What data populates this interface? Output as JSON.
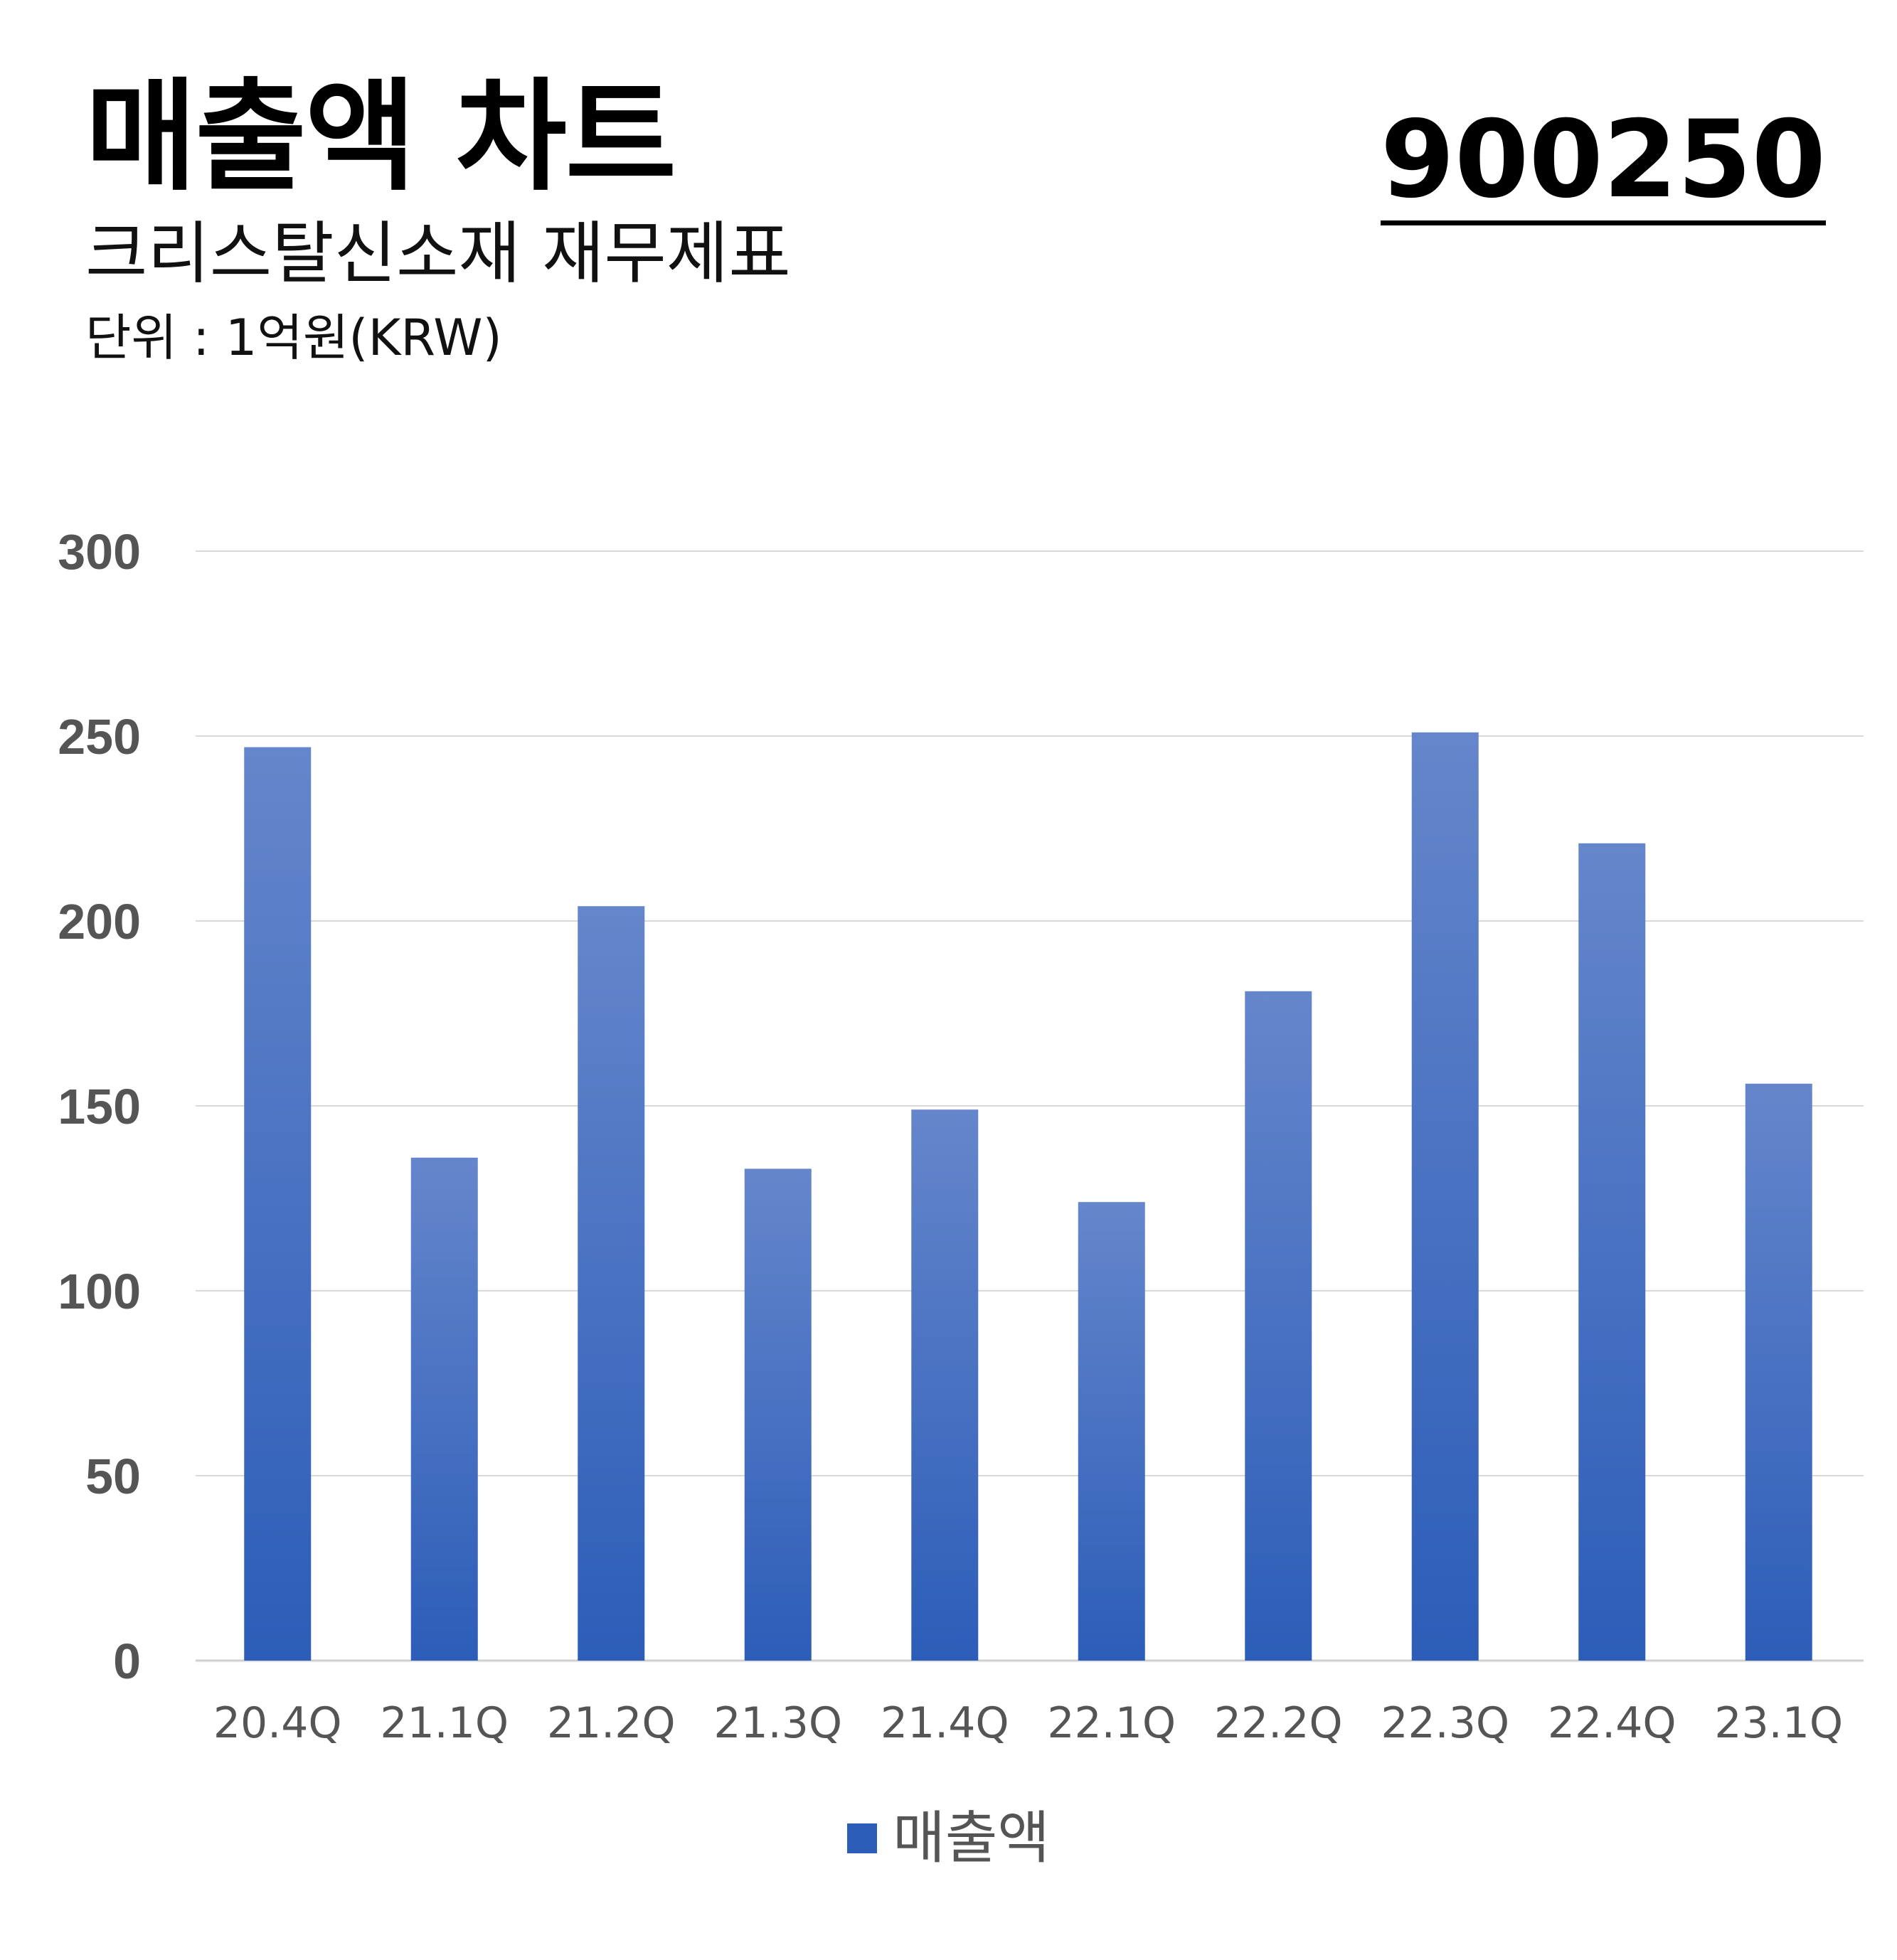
{
  "header": {
    "title": "매출액 차트",
    "subtitle": "크리스탈신소재 재무제표",
    "unit": "단위 : 1억원(KRW)",
    "code": "900250"
  },
  "chart_data": {
    "type": "bar",
    "categories": [
      "20.4Q",
      "21.1Q",
      "21.2Q",
      "21.3Q",
      "21.4Q",
      "22.1Q",
      "22.2Q",
      "22.3Q",
      "22.4Q",
      "23.1Q"
    ],
    "series": [
      {
        "name": "매출액",
        "values": [
          247,
          136,
          204,
          133,
          149,
          124,
          181,
          251,
          221,
          156
        ]
      }
    ],
    "ylim": [
      0,
      300
    ],
    "yticks": [
      0,
      50,
      100,
      150,
      200,
      250,
      300
    ],
    "grid": true,
    "legend": "bottom-center",
    "colors": {
      "bar_top": "#6586cb",
      "bar_bottom": "#2c5db8",
      "grid": "#d9d9d9",
      "axis": "#cfcfcf",
      "tick_text": "#555555"
    }
  }
}
